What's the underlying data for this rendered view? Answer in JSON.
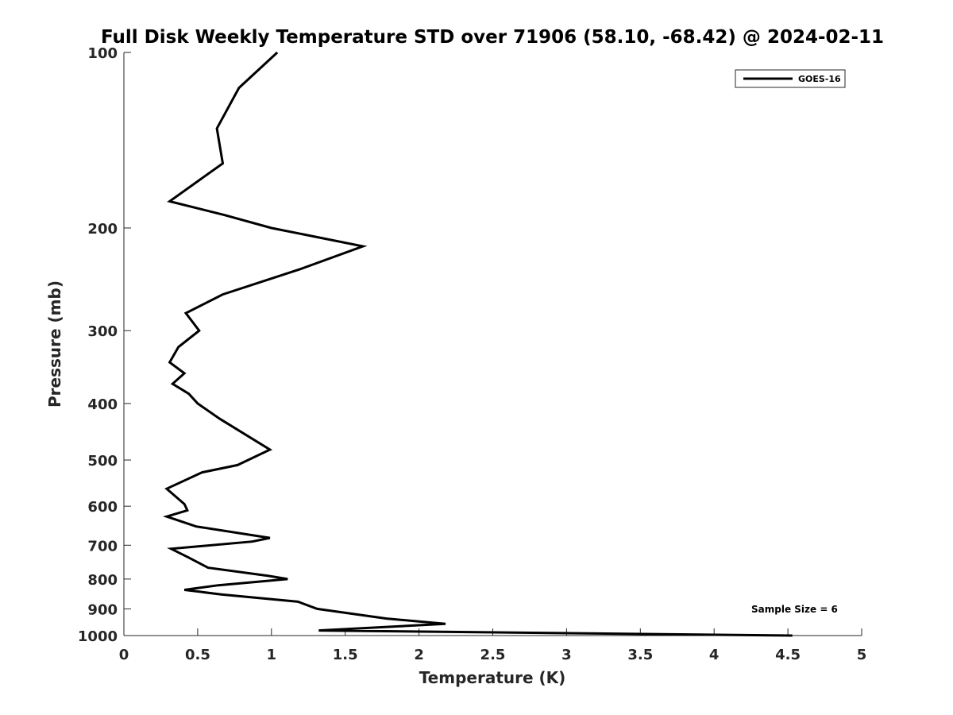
{
  "chart_data": {
    "type": "line",
    "title": "Full Disk Weekly Temperature STD over 71906 (58.10, -68.42) @ 2024-02-11",
    "xlabel": "Temperature (K)",
    "ylabel": "Pressure (mb)",
    "xlim": [
      0,
      5
    ],
    "ylim": [
      100,
      1000
    ],
    "yscale": "log",
    "y_reversed": true,
    "grid": false,
    "legend_position": "top-right",
    "x_ticks": [
      "0",
      "0.5",
      "1",
      "1.5",
      "2",
      "2.5",
      "3",
      "3.5",
      "4",
      "4.5",
      "5"
    ],
    "y_ticks": [
      "100",
      "200",
      "300",
      "400",
      "500",
      "600",
      "700",
      "800",
      "900",
      "1000"
    ],
    "annotation": "Sample Size = 6",
    "line_color": "#000000",
    "series": [
      {
        "name": "GOES-16",
        "x": [
          1.04,
          0.78,
          0.63,
          0.67,
          0.31,
          0.68,
          1.0,
          1.62,
          1.2,
          0.67,
          0.42,
          0.51,
          0.37,
          0.31,
          0.41,
          0.33,
          0.44,
          0.5,
          0.65,
          0.99,
          0.77,
          0.53,
          0.29,
          0.41,
          0.43,
          0.29,
          0.49,
          0.99,
          0.87,
          0.32,
          0.44,
          0.57,
          0.98,
          1.11,
          0.64,
          0.41,
          0.66,
          1.18,
          1.31,
          1.78,
          2.18,
          1.32,
          4.53
        ],
        "y": [
          100,
          115,
          135,
          155,
          180,
          190,
          200,
          215,
          235,
          260,
          280,
          300,
          320,
          340,
          355,
          370,
          385,
          400,
          425,
          480,
          510,
          525,
          560,
          595,
          610,
          625,
          650,
          680,
          690,
          710,
          735,
          765,
          790,
          800,
          820,
          835,
          850,
          875,
          900,
          935,
          955,
          980,
          1000
        ]
      }
    ]
  }
}
